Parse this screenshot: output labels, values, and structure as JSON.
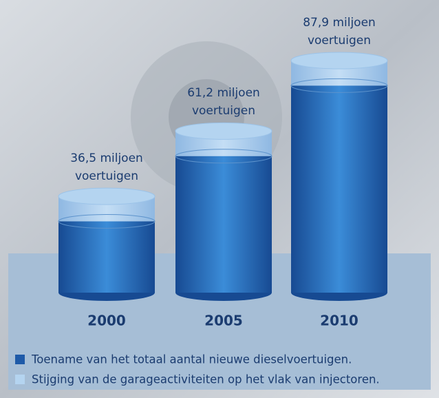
{
  "chart_data": {
    "type": "bar",
    "categories": [
      "2000",
      "2005",
      "2010"
    ],
    "series": [
      {
        "name": "Toename van het totaal aantal nieuwe dieselvoertuigen.",
        "color": "#1e5aa8",
        "values": [
          36.5,
          61.2,
          87.9
        ],
        "value_labels": [
          "36,5 miljoen voertuigen",
          "61,2 miljoen voertuigen",
          "87,9 miljoen voertuigen"
        ]
      },
      {
        "name": "Stijging van de garageactiviteiten op het vlak van injectoren.",
        "color": "#b4d4f0",
        "values": [
          9.5,
          9.5,
          9.5
        ]
      }
    ]
  }
}
